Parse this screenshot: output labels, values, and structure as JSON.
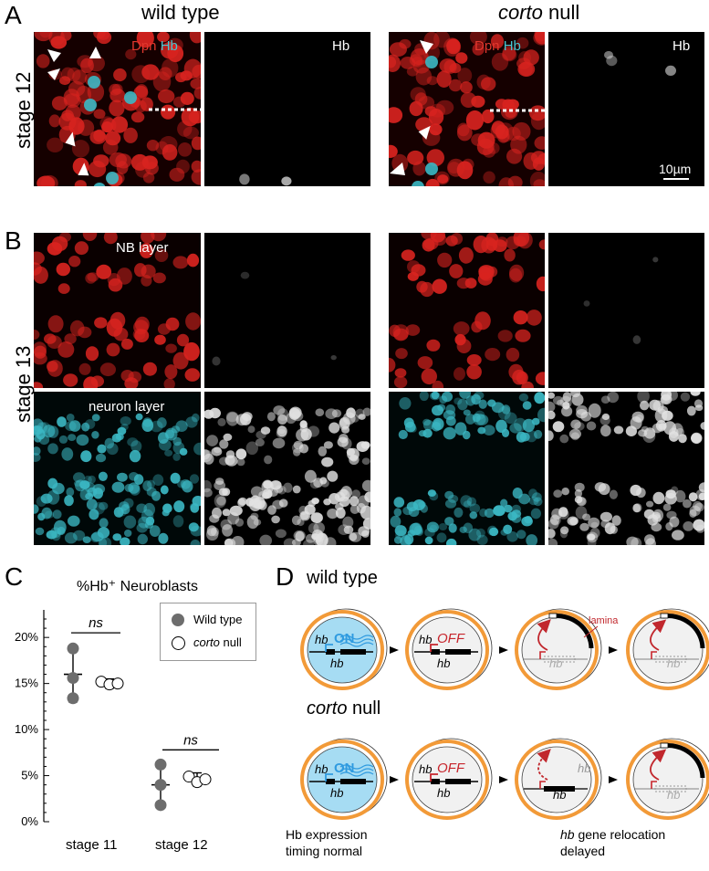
{
  "panels": {
    "A": "A",
    "B": "B",
    "C": "C",
    "D": "D"
  },
  "columns": {
    "wild_type": "wild type",
    "corto_italic": "corto",
    "corto_suffix": " null"
  },
  "row_labels": {
    "stage12": "stage 12",
    "stage13": "stage 13"
  },
  "stain_labels": {
    "dpn": "Dpn",
    "hb_cyan": "Hb",
    "hb": "Hb",
    "nb_layer": "NB layer",
    "neuron_layer": "neuron layer",
    "scale_bar": "10µm"
  },
  "chart_data": {
    "type": "scatter",
    "title": "%Hb⁺ Neuroblasts",
    "categories": [
      "stage 11",
      "stage 12"
    ],
    "ylim": [
      0,
      22
    ],
    "yticks": [
      "0%",
      "5%",
      "10%",
      "15%",
      "20%"
    ],
    "ytick_values": [
      0,
      5,
      10,
      15,
      20
    ],
    "significance": [
      "ns",
      "ns"
    ],
    "series": [
      {
        "name": "Wild type",
        "marker": "filled",
        "color": "#6d6d6d",
        "points": [
          [
            18.8,
            15.6,
            13.4
          ],
          [
            6.2,
            4.0,
            1.8
          ]
        ],
        "mean": [
          16.0,
          4.0
        ],
        "error": [
          3.0,
          2.4
        ]
      },
      {
        "name": "corto null",
        "marker": "open",
        "color": "#000000",
        "points": [
          [
            15.2,
            14.9,
            15.0
          ],
          [
            4.9,
            4.3,
            4.6
          ]
        ],
        "mean": [
          15.0,
          4.6
        ],
        "error": [
          0.5,
          0.7
        ]
      }
    ],
    "legend": {
      "wild": "Wild type",
      "corto_italic": "corto",
      "corto_suffix": " null"
    }
  },
  "schematic": {
    "wild_type": "wild type",
    "corto_italic": "corto",
    "corto_suffix": " null",
    "hb": "hb",
    "on": "ON",
    "off": "OFF",
    "lamina": "lamina",
    "caption_left_1": "Hb expression",
    "caption_left_2": "timing normal",
    "caption_right_italic": "hb",
    "caption_right_1": " gene relocation",
    "caption_right_2": "delayed"
  },
  "colors": {
    "dpn_red": "#d8231f",
    "hb_cyan": "#3bb8c4",
    "orange_ring": "#f29a38",
    "nucleus_blue": "#a6dcf3",
    "on_blue": "#2f9be0",
    "off_red": "#c7252c",
    "lamina_red": "#c1272d"
  }
}
